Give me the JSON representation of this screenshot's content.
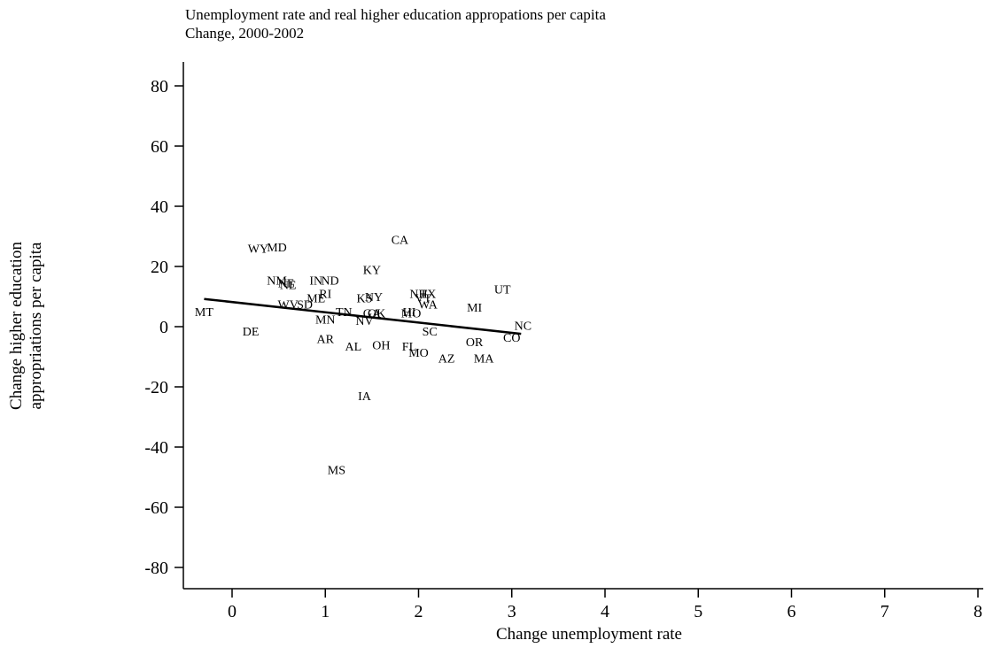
{
  "chart_data": {
    "type": "scatter",
    "title": "Unemployment rate and real higher education appropations per capita",
    "subtitle": "Change, 2000-2002",
    "xlabel": "Change unemployment rate",
    "ylabel_lines": [
      "Change higher education",
      "appropriations per capita"
    ],
    "xlim": [
      -0.5,
      8.1
    ],
    "ylim": [
      -85,
      88
    ],
    "x_ticks": [
      0,
      1,
      2,
      3,
      4,
      5,
      6,
      7,
      8
    ],
    "y_ticks": [
      80,
      60,
      40,
      20,
      0,
      -20,
      -40,
      -60,
      -80
    ],
    "grid": false,
    "legend": "none",
    "points": [
      {
        "label": "WY",
        "x": 0.28,
        "y": 26
      },
      {
        "label": "MD",
        "x": 0.48,
        "y": 26.5
      },
      {
        "label": "CA",
        "x": 1.8,
        "y": 29
      },
      {
        "label": "KY",
        "x": 1.5,
        "y": 19
      },
      {
        "label": "NM",
        "x": 0.48,
        "y": 15.5
      },
      {
        "label": "NE",
        "x": 0.58,
        "y": 14.5
      },
      {
        "label": "NE",
        "x": 0.6,
        "y": 14
      },
      {
        "label": "IN",
        "x": 0.9,
        "y": 15.5
      },
      {
        "label": "ND",
        "x": 1.05,
        "y": 15.5
      },
      {
        "label": "RI",
        "x": 1.0,
        "y": 11
      },
      {
        "label": "ME",
        "x": 0.9,
        "y": 9.5
      },
      {
        "label": "KS",
        "x": 1.42,
        "y": 9.5
      },
      {
        "label": "NY",
        "x": 1.52,
        "y": 10
      },
      {
        "label": "NH",
        "x": 2.0,
        "y": 11
      },
      {
        "label": "TX",
        "x": 2.1,
        "y": 11
      },
      {
        "label": "WV",
        "x": 0.6,
        "y": 7.5
      },
      {
        "label": "SD",
        "x": 0.78,
        "y": 7.5
      },
      {
        "label": "VT",
        "x": 2.05,
        "y": 9.5
      },
      {
        "label": "WA",
        "x": 2.1,
        "y": 7.5
      },
      {
        "label": "MI",
        "x": 2.6,
        "y": 6.5
      },
      {
        "label": "UT",
        "x": 2.9,
        "y": 12.5
      },
      {
        "label": "MT",
        "x": -0.3,
        "y": 5
      },
      {
        "label": "TN",
        "x": 1.2,
        "y": 5
      },
      {
        "label": "GA",
        "x": 1.5,
        "y": 4.5
      },
      {
        "label": "OK",
        "x": 1.55,
        "y": 4.5
      },
      {
        "label": "MN",
        "x": 1.0,
        "y": 2.5
      },
      {
        "label": "NV",
        "x": 1.42,
        "y": 2
      },
      {
        "label": "HI",
        "x": 1.9,
        "y": 5
      },
      {
        "label": "MO",
        "x": 1.92,
        "y": 4.5
      },
      {
        "label": "SC",
        "x": 2.12,
        "y": -1.5
      },
      {
        "label": "NC",
        "x": 3.12,
        "y": 0.5
      },
      {
        "label": "CO",
        "x": 3.0,
        "y": -3.5
      },
      {
        "label": "DE",
        "x": 0.2,
        "y": -1.5
      },
      {
        "label": "AR",
        "x": 1.0,
        "y": -4
      },
      {
        "label": "AL",
        "x": 1.3,
        "y": -6.5
      },
      {
        "label": "OH",
        "x": 1.6,
        "y": -6
      },
      {
        "label": "FL",
        "x": 1.9,
        "y": -6.5
      },
      {
        "label": "MO",
        "x": 2.0,
        "y": -8.5
      },
      {
        "label": "OR",
        "x": 2.6,
        "y": -5
      },
      {
        "label": "AZ",
        "x": 2.3,
        "y": -10.5
      },
      {
        "label": "MA",
        "x": 2.7,
        "y": -10.5
      },
      {
        "label": "IA",
        "x": 1.42,
        "y": -23
      },
      {
        "label": "MS",
        "x": 1.12,
        "y": -47.5
      }
    ],
    "fit_line": {
      "x": [
        -0.3,
        3.1
      ],
      "y": [
        9.2,
        -2.4
      ]
    }
  }
}
